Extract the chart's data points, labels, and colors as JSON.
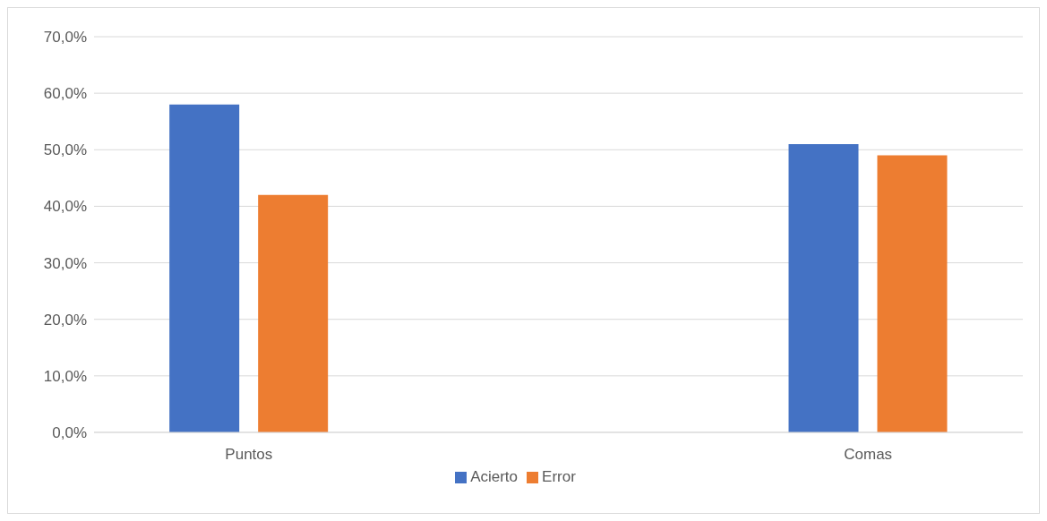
{
  "chart_data": {
    "type": "bar",
    "categories": [
      "Puntos",
      "Comas"
    ],
    "series": [
      {
        "name": "Acierto",
        "color": "#4472c4",
        "values": [
          58,
          51
        ]
      },
      {
        "name": "Error",
        "color": "#ed7d31",
        "values": [
          42,
          49
        ]
      }
    ],
    "ylim": [
      0,
      70
    ],
    "yticks": [
      {
        "value": 0,
        "label": "0,0%"
      },
      {
        "value": 10,
        "label": "10,0%"
      },
      {
        "value": 20,
        "label": "20,0%"
      },
      {
        "value": 30,
        "label": "30,0%"
      },
      {
        "value": 40,
        "label": "40,0%"
      },
      {
        "value": 50,
        "label": "50,0%"
      },
      {
        "value": 60,
        "label": "60,0%"
      },
      {
        "value": 70,
        "label": "70,0%"
      }
    ],
    "grid": "y",
    "legend": "bottom"
  }
}
